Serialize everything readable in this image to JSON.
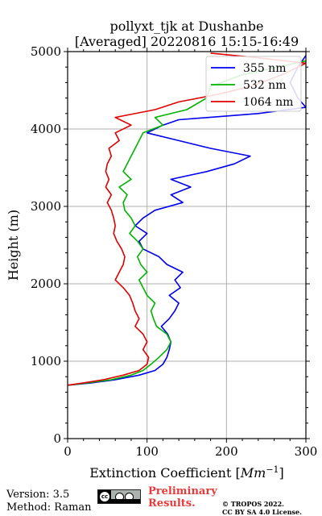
{
  "chart_data": {
    "type": "line",
    "title": "pollyxt_tjk at Dushanbe",
    "subtitle": "[Averaged] 20220816 15:15-16:49",
    "xlabel": "Extinction Coefficient [",
    "xlabel_unit": "Mm",
    "xlabel_exp": "−1",
    "xlabel_close": "]",
    "ylabel": "Height (m)",
    "xlim": [
      0,
      300
    ],
    "ylim": [
      0,
      5000
    ],
    "xticks": [
      0,
      100,
      200,
      300
    ],
    "yticks": [
      0,
      1000,
      2000,
      3000,
      4000,
      5000
    ],
    "grid": true,
    "legend_position": "top-right",
    "series": [
      {
        "name": "355 nm",
        "color": "#0000ee",
        "points": [
          [
            0,
            690
          ],
          [
            30,
            720
          ],
          [
            60,
            760
          ],
          [
            90,
            820
          ],
          [
            110,
            880
          ],
          [
            120,
            960
          ],
          [
            125,
            1050
          ],
          [
            128,
            1150
          ],
          [
            130,
            1250
          ],
          [
            126,
            1350
          ],
          [
            118,
            1450
          ],
          [
            128,
            1550
          ],
          [
            135,
            1650
          ],
          [
            140,
            1750
          ],
          [
            128,
            1850
          ],
          [
            142,
            1950
          ],
          [
            135,
            2050
          ],
          [
            145,
            2150
          ],
          [
            125,
            2250
          ],
          [
            115,
            2350
          ],
          [
            95,
            2450
          ],
          [
            90,
            2550
          ],
          [
            100,
            2650
          ],
          [
            85,
            2750
          ],
          [
            95,
            2850
          ],
          [
            110,
            2950
          ],
          [
            145,
            3050
          ],
          [
            130,
            3150
          ],
          [
            155,
            3250
          ],
          [
            130,
            3350
          ],
          [
            175,
            3450
          ],
          [
            210,
            3550
          ],
          [
            230,
            3650
          ],
          [
            180,
            3750
          ],
          [
            140,
            3850
          ],
          [
            100,
            3950
          ],
          [
            120,
            4050
          ],
          [
            140,
            4120
          ],
          [
            240,
            4200
          ],
          [
            300,
            4280
          ],
          [
            290,
            4400
          ],
          [
            280,
            4600
          ],
          [
            290,
            4800
          ],
          [
            300,
            4950
          ]
        ]
      },
      {
        "name": "532 nm",
        "color": "#00b300",
        "points": [
          [
            0,
            690
          ],
          [
            25,
            720
          ],
          [
            55,
            760
          ],
          [
            80,
            820
          ],
          [
            95,
            880
          ],
          [
            105,
            960
          ],
          [
            115,
            1050
          ],
          [
            125,
            1150
          ],
          [
            130,
            1250
          ],
          [
            125,
            1350
          ],
          [
            112,
            1450
          ],
          [
            108,
            1550
          ],
          [
            105,
            1650
          ],
          [
            110,
            1750
          ],
          [
            100,
            1850
          ],
          [
            95,
            1950
          ],
          [
            90,
            2050
          ],
          [
            100,
            2150
          ],
          [
            92,
            2250
          ],
          [
            88,
            2350
          ],
          [
            95,
            2450
          ],
          [
            88,
            2550
          ],
          [
            78,
            2650
          ],
          [
            85,
            2750
          ],
          [
            80,
            2850
          ],
          [
            72,
            2950
          ],
          [
            70,
            3050
          ],
          [
            75,
            3150
          ],
          [
            65,
            3250
          ],
          [
            80,
            3350
          ],
          [
            70,
            3450
          ],
          [
            75,
            3550
          ],
          [
            80,
            3650
          ],
          [
            85,
            3750
          ],
          [
            90,
            3850
          ],
          [
            95,
            3950
          ],
          [
            120,
            4050
          ],
          [
            110,
            4150
          ],
          [
            150,
            4250
          ],
          [
            175,
            4400
          ],
          [
            180,
            4550
          ],
          [
            220,
            4700
          ],
          [
            300,
            4880
          ]
        ]
      },
      {
        "name": "1064 nm",
        "color": "#e00000",
        "points": [
          [
            0,
            690
          ],
          [
            20,
            720
          ],
          [
            45,
            760
          ],
          [
            70,
            820
          ],
          [
            90,
            880
          ],
          [
            100,
            960
          ],
          [
            102,
            1050
          ],
          [
            95,
            1150
          ],
          [
            100,
            1250
          ],
          [
            95,
            1350
          ],
          [
            85,
            1450
          ],
          [
            90,
            1550
          ],
          [
            85,
            1650
          ],
          [
            82,
            1750
          ],
          [
            78,
            1850
          ],
          [
            70,
            1950
          ],
          [
            60,
            2050
          ],
          [
            65,
            2150
          ],
          [
            70,
            2250
          ],
          [
            72,
            2350
          ],
          [
            68,
            2450
          ],
          [
            62,
            2550
          ],
          [
            58,
            2650
          ],
          [
            60,
            2750
          ],
          [
            58,
            2850
          ],
          [
            55,
            2950
          ],
          [
            50,
            3050
          ],
          [
            55,
            3150
          ],
          [
            48,
            3250
          ],
          [
            52,
            3350
          ],
          [
            48,
            3450
          ],
          [
            50,
            3550
          ],
          [
            55,
            3650
          ],
          [
            52,
            3750
          ],
          [
            65,
            3850
          ],
          [
            60,
            3950
          ],
          [
            80,
            4050
          ],
          [
            60,
            4150
          ],
          [
            110,
            4250
          ],
          [
            140,
            4350
          ],
          [
            190,
            4450
          ],
          [
            230,
            4550
          ],
          [
            270,
            4700
          ],
          [
            300,
            4850
          ],
          [
            240,
            4920
          ],
          [
            180,
            4980
          ]
        ]
      }
    ]
  },
  "footer": {
    "version": "Version: 3.5",
    "method": "Method: Raman",
    "preliminary_1": "Preliminary",
    "preliminary_2": "Results.",
    "copyright_1": "© TROPOS 2022.",
    "copyright_2": "CC BY SA 4.0 License."
  }
}
